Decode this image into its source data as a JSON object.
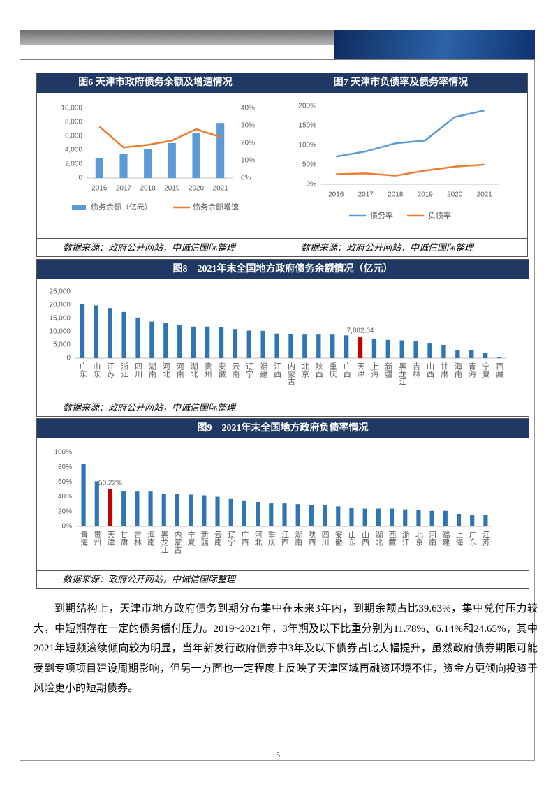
{
  "chart_data": [
    {
      "type": "bar",
      "title": "图6 天津市政府债务余额及增速情况",
      "categories": [
        "2016",
        "2017",
        "2018",
        "2019",
        "2020",
        "2021"
      ],
      "series": [
        {
          "name": "债务余额（亿元）",
          "color": "#5b9bd5",
          "values": [
            2900,
            3400,
            4100,
            5000,
            6400,
            7882.04
          ]
        },
        {
          "name": "债务余额增速",
          "color": "#ed7d31",
          "type": "line",
          "axis": "y2",
          "values": [
            29.5,
            17.5,
            19,
            21.5,
            28,
            23.5
          ]
        }
      ],
      "ylim": [
        0,
        10000
      ],
      "yticks": [
        0,
        {
          "value": 2000,
          "label": "2,000"
        },
        {
          "value": 4000,
          "label": "4,000"
        },
        {
          "value": 6000,
          "label": "6,000"
        },
        {
          "value": 8000,
          "label": "8,000"
        },
        {
          "value": 10000,
          "label": "10,000"
        }
      ],
      "y2lim": [
        0,
        40
      ],
      "y2ticks": [
        {
          "value": 0,
          "label": "0%"
        },
        {
          "value": 10,
          "label": "10%"
        },
        {
          "value": 20,
          "label": "20%"
        },
        {
          "value": 30,
          "label": "30%"
        },
        {
          "value": 40,
          "label": "40%"
        }
      ],
      "grid": false,
      "source": "数据来源：政府公开网站，中诚信国际整理"
    },
    {
      "type": "line",
      "title": "图7 天津市负债率及债务率情况",
      "categories": [
        "2016",
        "2017",
        "2018",
        "2019",
        "2020",
        "2021"
      ],
      "series": [
        {
          "name": "债务率",
          "color": "#5b9bd5",
          "values": [
            71,
            84,
            105,
            112,
            172,
            189
          ]
        },
        {
          "name": "负债率",
          "color": "#ed7d31",
          "values": [
            26,
            28,
            22,
            35,
            45,
            50.22
          ]
        }
      ],
      "ylim": [
        0,
        200
      ],
      "yticks": [
        {
          "value": 0,
          "label": "0%"
        },
        {
          "value": 50,
          "label": "50%"
        },
        {
          "value": 100,
          "label": "100%"
        },
        {
          "value": 150,
          "label": "150%"
        },
        {
          "value": 200,
          "label": "200%"
        }
      ],
      "grid": false,
      "source": "数据来源：政府公开网站，中诚信国际整理"
    },
    {
      "type": "bar",
      "title": "图8　2021年末全国地方政府债务余额情况（亿元）",
      "categories": [
        "广东",
        "山东",
        "江苏",
        "浙江",
        "四川",
        "湖南",
        "河北",
        "河南",
        "湖北",
        "贵州",
        "安徽",
        "云南",
        "辽宁",
        "福建",
        "江西",
        "内蒙古",
        "北京",
        "陕西",
        "重庆",
        "广西",
        "天津",
        "上海",
        "新疆",
        "黑龙江",
        "吉林",
        "山西",
        "甘肃",
        "海南",
        "青海",
        "宁夏",
        "西藏"
      ],
      "values": [
        20400,
        19900,
        18900,
        17400,
        15300,
        13800,
        13400,
        12500,
        11900,
        11900,
        11700,
        11000,
        10400,
        10300,
        9300,
        9000,
        8900,
        8900,
        8900,
        8600,
        7882.04,
        7400,
        6900,
        6700,
        6300,
        5500,
        5000,
        3100,
        2900,
        2000,
        500
      ],
      "value_labels": [
        null,
        null,
        null,
        null,
        null,
        null,
        null,
        null,
        null,
        null,
        null,
        null,
        null,
        null,
        null,
        null,
        null,
        null,
        null,
        null,
        "7,882.04",
        null,
        null,
        null,
        null,
        null,
        null,
        null,
        null,
        null,
        null
      ],
      "colors": [
        "#2e75b6",
        "#2e75b6",
        "#2e75b6",
        "#2e75b6",
        "#2e75b6",
        "#2e75b6",
        "#2e75b6",
        "#2e75b6",
        "#2e75b6",
        "#2e75b6",
        "#2e75b6",
        "#2e75b6",
        "#2e75b6",
        "#2e75b6",
        "#2e75b6",
        "#2e75b6",
        "#2e75b6",
        "#2e75b6",
        "#2e75b6",
        "#2e75b6",
        "#c00000",
        "#2e75b6",
        "#2e75b6",
        "#2e75b6",
        "#2e75b6",
        "#2e75b6",
        "#2e75b6",
        "#2e75b6",
        "#2e75b6",
        "#2e75b6",
        "#2e75b6"
      ],
      "ylim": [
        0,
        25000
      ],
      "yticks": [
        0,
        {
          "value": 5000,
          "label": "5,000"
        },
        {
          "value": 10000,
          "label": "10,000"
        },
        {
          "value": 15000,
          "label": "15,000"
        },
        {
          "value": 20000,
          "label": "20,000"
        },
        {
          "value": 25000,
          "label": "25,000"
        }
      ],
      "grid": false,
      "source": "数据来源：政府公开网站，中诚信国际整理"
    },
    {
      "type": "bar",
      "title": "图9　2021年末全国地方政府负债率情况",
      "categories": [
        "青海",
        "贵州",
        "天津",
        "甘肃",
        "吉林",
        "海南",
        "黑龙江",
        "内蒙古",
        "宁夏",
        "新疆",
        "云南",
        "辽宁",
        "广西",
        "河北",
        "重庆",
        "江西",
        "湖南",
        "陕西",
        "四川",
        "安徽",
        "山东",
        "山西",
        "湖北",
        "西藏",
        "浙江",
        "北京",
        "河南",
        "福建",
        "上海",
        "广东",
        "江苏"
      ],
      "values": [
        84,
        61,
        50.22,
        48,
        47,
        47,
        44,
        44,
        43,
        42,
        40,
        37,
        35,
        33,
        31,
        31,
        30,
        29,
        29,
        27,
        25,
        24,
        24,
        24,
        23,
        22,
        21,
        21,
        17,
        16,
        16
      ],
      "value_labels": [
        null,
        null,
        "50.22%",
        null,
        null,
        null,
        null,
        null,
        null,
        null,
        null,
        null,
        null,
        null,
        null,
        null,
        null,
        null,
        null,
        null,
        null,
        null,
        null,
        null,
        null,
        null,
        null,
        null,
        null,
        null,
        null
      ],
      "colors": [
        "#2e75b6",
        "#2e75b6",
        "#c00000",
        "#2e75b6",
        "#2e75b6",
        "#2e75b6",
        "#2e75b6",
        "#2e75b6",
        "#2e75b6",
        "#2e75b6",
        "#2e75b6",
        "#2e75b6",
        "#2e75b6",
        "#2e75b6",
        "#2e75b6",
        "#2e75b6",
        "#2e75b6",
        "#2e75b6",
        "#2e75b6",
        "#2e75b6",
        "#2e75b6",
        "#2e75b6",
        "#2e75b6",
        "#2e75b6",
        "#2e75b6",
        "#2e75b6",
        "#2e75b6",
        "#2e75b6",
        "#2e75b6",
        "#2e75b6",
        "#2e75b6"
      ],
      "ylim": [
        0,
        100
      ],
      "yticks": [
        {
          "value": 0,
          "label": "0%"
        },
        {
          "value": 20,
          "label": "20%"
        },
        {
          "value": 40,
          "label": "40%"
        },
        {
          "value": 60,
          "label": "60%"
        },
        {
          "value": 80,
          "label": "80%"
        },
        {
          "value": 100,
          "label": "100%"
        }
      ],
      "grid": false,
      "source": "数据来源：政府公开网站，中诚信国际整理"
    }
  ],
  "paragraph": "到期结构上，天津市地方政府债务到期分布集中在未来3年内，到期余额占比39.63%，集中兑付压力较大，中短期存在一定的债务偿付压力。2019~2021年，3年期及以下比重分别为11.78%、6.14%和24.65%，其中2021年短频滚续倾向较为明显，当年新发行政府债券中3年及以下债券占比大幅提升，虽然政府债券期限可能受到专项项目建设周期影响，但另一方面也一定程度上反映了天津区域再融资环境不佳，资金方更倾向投资于风险更小的短期债券。",
  "page_number": "5"
}
